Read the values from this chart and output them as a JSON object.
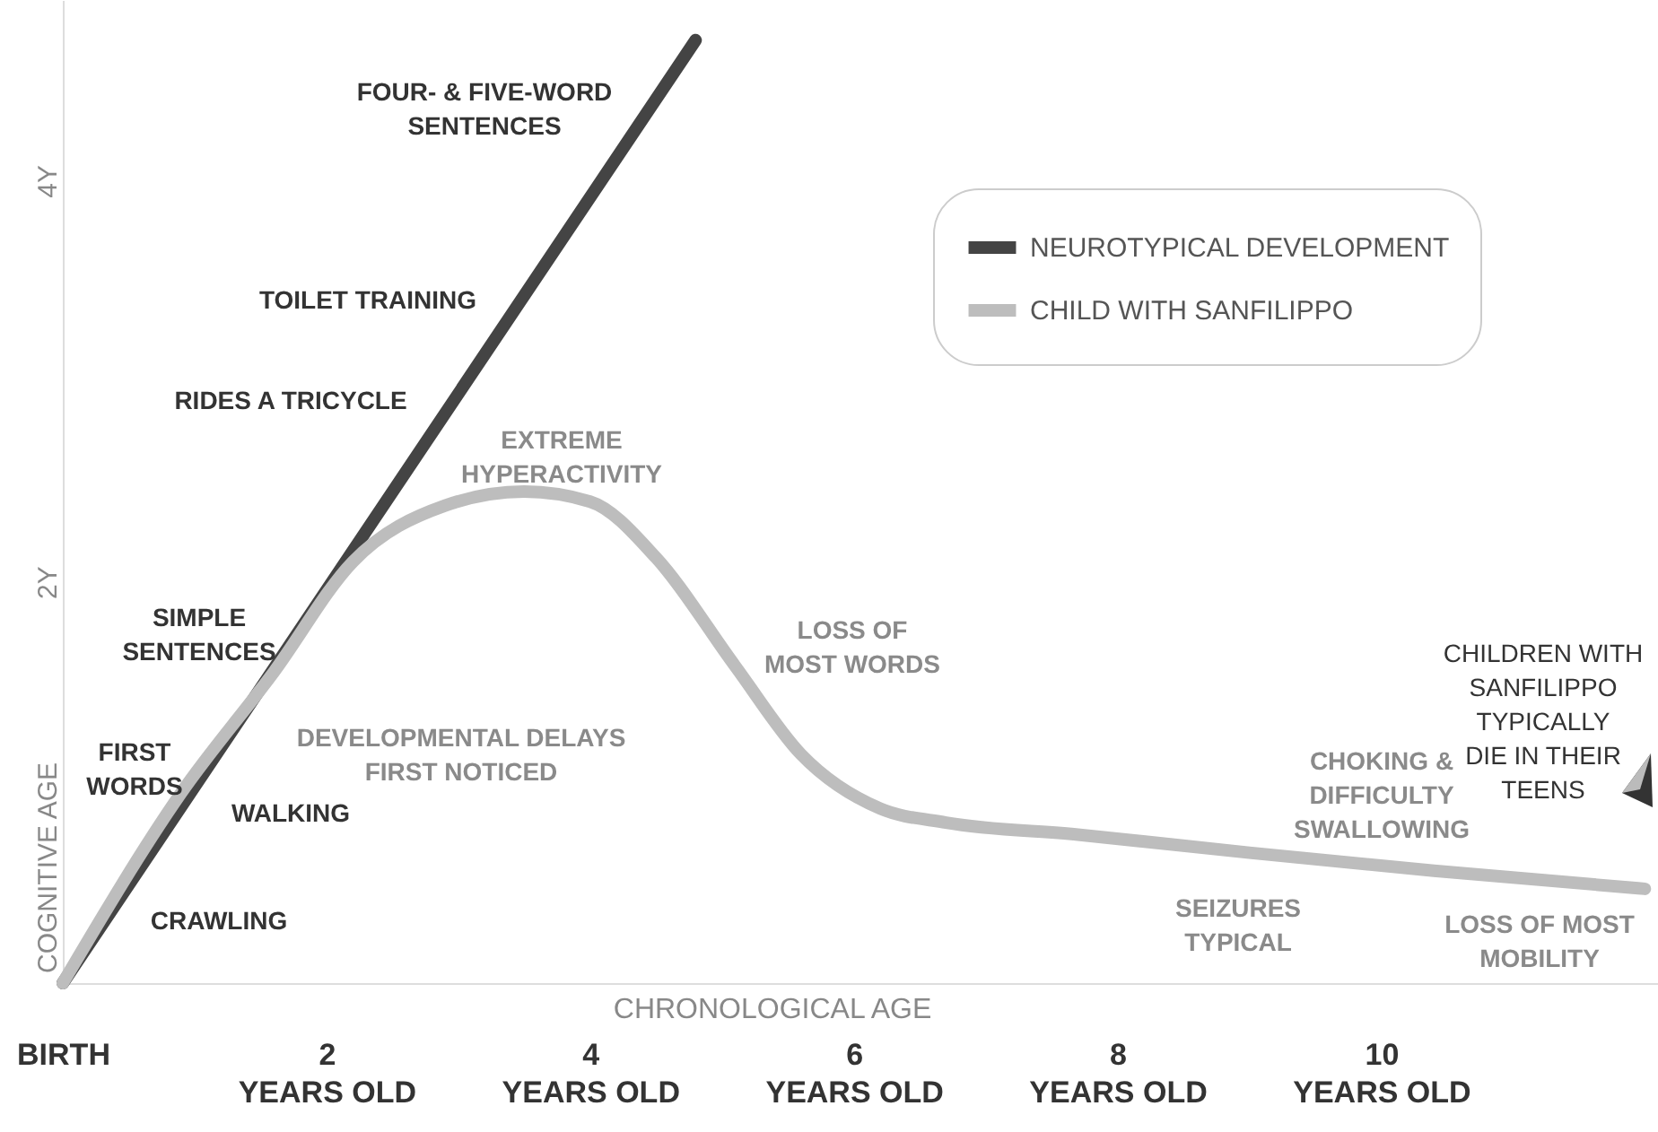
{
  "chart_data": {
    "type": "line",
    "xlabel": "CHRONOLOGICAL AGE",
    "ylabel": "COGNITIVE AGE",
    "xlim": [
      0,
      12.1
    ],
    "ylim": [
      0,
      4.9
    ],
    "xticks": [
      {
        "value": 0,
        "label": "BIRTH"
      },
      {
        "value": 2,
        "label": "2\nYEARS OLD"
      },
      {
        "value": 4,
        "label": "4\nYEARS OLD"
      },
      {
        "value": 6,
        "label": "6\nYEARS OLD"
      },
      {
        "value": 8,
        "label": "8\nYEARS OLD"
      },
      {
        "value": 10,
        "label": "10\nYEARS OLD"
      }
    ],
    "yticks": [
      {
        "value": 2,
        "label": "2Y"
      },
      {
        "value": 4,
        "label": "4Y"
      }
    ],
    "grid": false,
    "legend": "top right",
    "series": [
      {
        "name": "NEUROTYPICAL DEVELOPMENT",
        "color": "#444444",
        "x": [
          0,
          4.8
        ],
        "values": [
          0,
          4.7
        ]
      },
      {
        "name": "CHILD WITH SANFILIPPO",
        "color": "#bdbdbd",
        "x": [
          0,
          0.9,
          1.6,
          2.2,
          2.9,
          3.5,
          4.0,
          4.5,
          5.1,
          5.6,
          6.2,
          6.7,
          7.7,
          9.0,
          10.4,
          12
        ],
        "values": [
          0,
          0.95,
          1.55,
          2.1,
          2.38,
          2.45,
          2.4,
          2.12,
          1.58,
          1.14,
          0.87,
          0.8,
          0.74,
          0.65,
          0.56,
          0.47
        ]
      }
    ],
    "annotations": [
      "FOUR- & FIVE-WORD\nSENTENCES",
      "TOILET TRAINING",
      "RIDES A TRICYCLE",
      "SIMPLE\nSENTENCES",
      "FIRST\nWORDS",
      "WALKING",
      "CRAWLING",
      "EXTREME\nHYPERACTIVITY",
      "DEVELOPMENTAL DELAYS\nFIRST NOTICED",
      "LOSS OF\nMOST WORDS",
      "CHOKING &\nDIFFICULTY\nSWALLOWING",
      "SEIZURES\nTYPICAL",
      "LOSS OF MOST\nMOBILITY",
      "CHILDREN WITH\nSANFILIPPO\nTYPICALLY\nDIE IN THEIR\nTEENS"
    ]
  }
}
